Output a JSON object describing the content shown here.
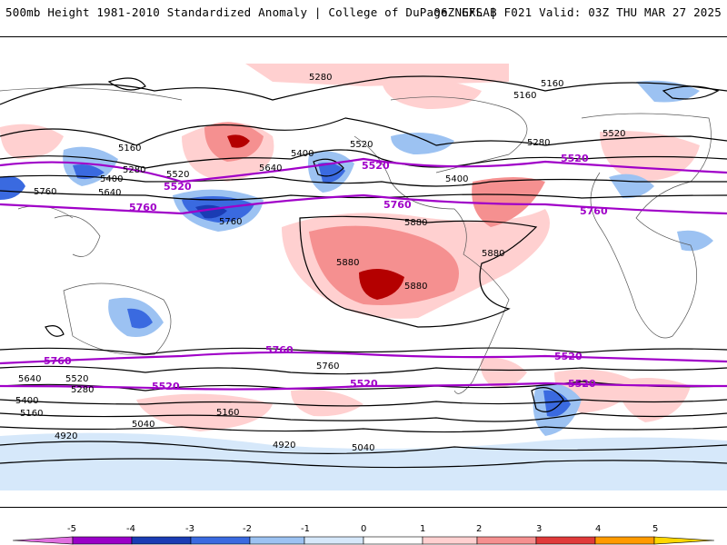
{
  "header": {
    "title": "500mb Height 1981-2010 Standardized Anomaly | College of DuPage NEXLAB",
    "run_info": "06Z GFS | F021 Valid: 03Z THU MAR 27 2025"
  },
  "contour_labels": [
    "5280",
    "5160",
    "5160",
    "5520",
    "5280",
    "5400",
    "5160",
    "5280",
    "5520",
    "5400",
    "5640",
    "5760",
    "5880",
    "5880",
    "5880",
    "5880",
    "5760",
    "5640",
    "5520",
    "5400",
    "5280",
    "5160",
    "5040",
    "4920",
    "5040",
    "4920",
    "5160",
    "5400",
    "5520",
    "5640",
    "5760"
  ],
  "highlight_labels": [
    "5520",
    "5760",
    "5520",
    "5760",
    "5520",
    "5760",
    "5760",
    "5760",
    "5520",
    "5520",
    "5520",
    "5520"
  ],
  "colorbar": {
    "ticks": [
      "-5",
      "-4",
      "-3",
      "-2",
      "-1",
      "0",
      "1",
      "2",
      "3",
      "4",
      "5"
    ],
    "colors": [
      "#e070e0",
      "#9a00c8",
      "#1a3cb4",
      "#3a6ae0",
      "#9cc2f2",
      "#d6e8fa",
      "#ffffff",
      "#ffd0d0",
      "#f59090",
      "#e03a3a",
      "#b40000",
      "#ff9a00",
      "#ffd700"
    ]
  }
}
